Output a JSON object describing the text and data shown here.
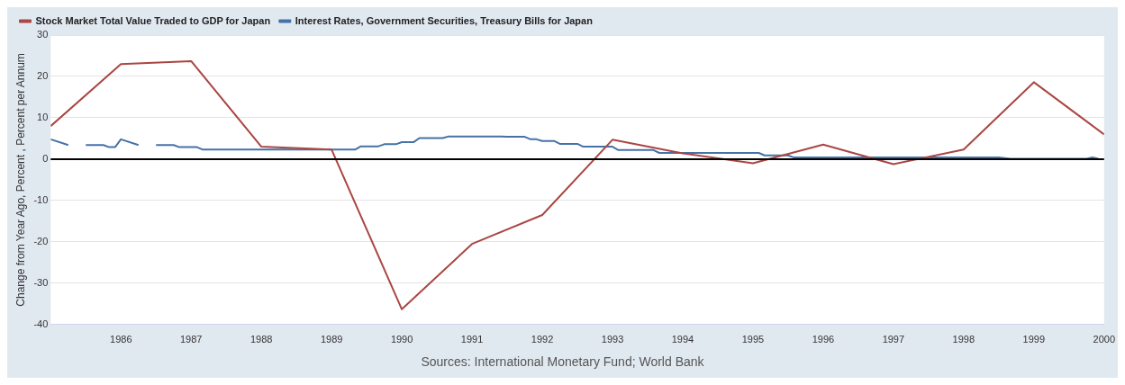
{
  "chart_data": {
    "type": "line",
    "ylabel": "Change from Year Ago, Percent , Percent per Annum",
    "annotations": [
      "Sources: International Monetary Fund; World Bank"
    ],
    "xlim": [
      "1985",
      "2000"
    ],
    "xticks": [
      "1986",
      "1987",
      "1988",
      "1989",
      "1990",
      "1991",
      "1992",
      "1993",
      "1994",
      "1995",
      "1996",
      "1997",
      "1998",
      "1999",
      "2000"
    ],
    "ylim": [
      -40,
      30
    ],
    "yticks": [
      -40,
      -30,
      -20,
      -10,
      0,
      10,
      20,
      30
    ],
    "grid": "y",
    "legend": "top left",
    "ref_lines": [
      {
        "axis": "y",
        "value": 0,
        "color": "#000000"
      }
    ],
    "series": [
      {
        "name": "Stock Market Total Value Traded to GDP for Japan",
        "color": "#aa4643",
        "x": [
          "1985",
          "1986",
          "1987",
          "1988",
          "1989",
          "1990",
          "1991",
          "1992",
          "1993",
          "1994",
          "1995",
          "1996",
          "1997",
          "1998",
          "1999",
          "2000"
        ],
        "values": [
          8,
          23,
          23.7,
          3,
          2.3,
          -36.3,
          -20.5,
          -13.5,
          4.7,
          1.4,
          -1,
          3.5,
          -1.2,
          2.3,
          18.6,
          6
        ]
      },
      {
        "name": "Interest Rates, Government Securities, Treasury Bills for Japan",
        "color": "#4572a7",
        "x": [
          "1985-01",
          "1985-04",
          "1985-05",
          "1985-07",
          "1985-10",
          "1985-11",
          "1985-12",
          "1986-01",
          "1986-04",
          "1986-05",
          "1986-07",
          "1986-10",
          "1986-11",
          "1987-02",
          "1987-03",
          "1989-05",
          "1989-06",
          "1989-09",
          "1989-10",
          "1989-12",
          "1990-01",
          "1990-03",
          "1990-04",
          "1990-08",
          "1990-09",
          "1991-06",
          "1991-07",
          "1991-10",
          "1991-11",
          "1991-12",
          "1992-01",
          "1992-03",
          "1992-04",
          "1992-07",
          "1992-08",
          "1993-01",
          "1993-02",
          "1993-08",
          "1993-09",
          "1995-02",
          "1995-03",
          "1995-07",
          "1995-08",
          "1998-07",
          "1998-09",
          "1999-10",
          "1999-11",
          "1999-12"
        ],
        "values": [
          4.8,
          3.4,
          null,
          3.4,
          3.4,
          2.9,
          2.9,
          4.8,
          3.4,
          null,
          3.4,
          3.4,
          2.9,
          2.9,
          2.3,
          2.3,
          3.1,
          3.1,
          3.6,
          3.6,
          4.1,
          4.1,
          5.1,
          5.1,
          5.5,
          5.5,
          5.4,
          5.4,
          4.8,
          4.8,
          4.4,
          4.4,
          3.7,
          3.7,
          3.0,
          3.0,
          2.2,
          2.2,
          1.5,
          1.5,
          0.9,
          0.9,
          0.4,
          0.4,
          0.1,
          0.1,
          0.4,
          0.1
        ]
      }
    ]
  }
}
